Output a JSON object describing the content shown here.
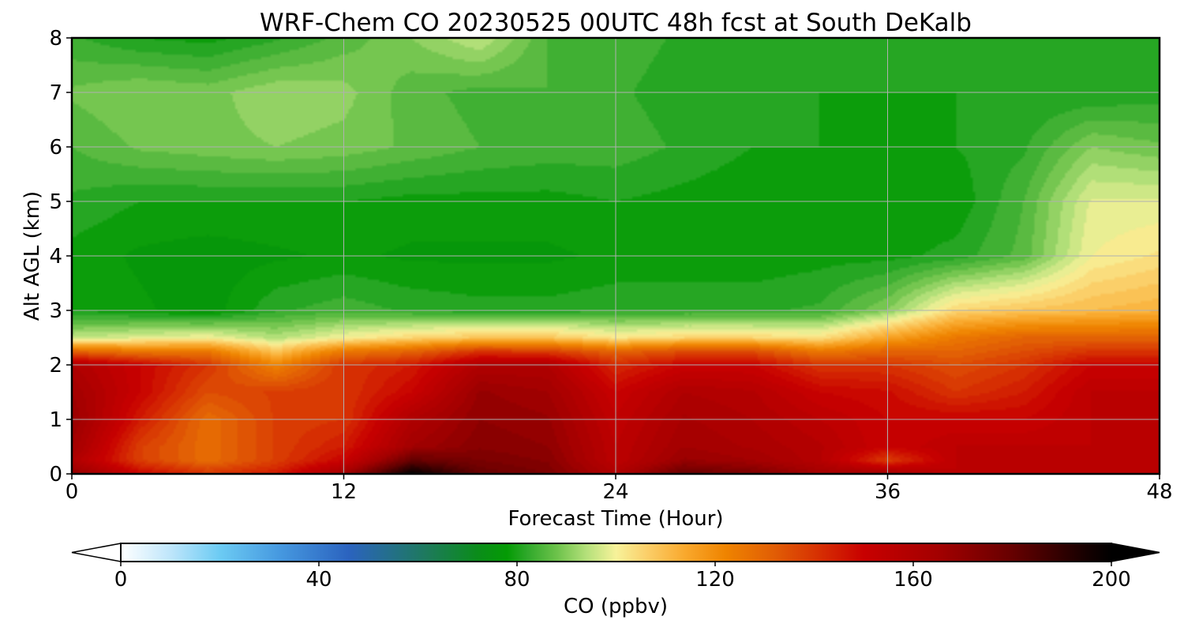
{
  "chart_data": {
    "type": "heatmap",
    "title": "WRF-Chem CO  20230525 00UTC 48h fcst at South DeKalb",
    "xlabel": "Forecast Time (Hour)",
    "ylabel": "Alt AGL (km)",
    "xlim": [
      0,
      48
    ],
    "ylim": [
      0,
      8
    ],
    "x_ticks": [
      0,
      12,
      24,
      36,
      48
    ],
    "y_ticks": [
      0,
      1,
      2,
      3,
      4,
      5,
      6,
      7,
      8
    ],
    "grid": true,
    "x": [
      0,
      3,
      6,
      9,
      12,
      15,
      18,
      21,
      24,
      27,
      30,
      33,
      36,
      39,
      42,
      45,
      48
    ],
    "y": [
      0,
      0.25,
      0.5,
      1,
      1.5,
      2,
      2.25,
      2.5,
      3,
      4,
      5,
      6,
      7,
      8
    ],
    "z": [
      [
        170,
        150,
        140,
        145,
        165,
        200,
        180,
        175,
        160,
        180,
        175,
        165,
        165,
        155,
        155,
        155,
        155
      ],
      [
        160,
        138,
        128,
        138,
        150,
        180,
        175,
        172,
        155,
        168,
        165,
        158,
        138,
        155,
        155,
        155,
        155
      ],
      [
        165,
        138,
        128,
        138,
        145,
        165,
        172,
        170,
        155,
        165,
        162,
        158,
        150,
        155,
        155,
        155,
        155
      ],
      [
        168,
        145,
        128,
        138,
        140,
        160,
        170,
        168,
        153,
        163,
        160,
        155,
        150,
        150,
        150,
        155,
        155
      ],
      [
        165,
        150,
        135,
        138,
        140,
        150,
        168,
        165,
        150,
        160,
        158,
        150,
        148,
        140,
        145,
        155,
        155
      ],
      [
        160,
        150,
        140,
        122,
        140,
        145,
        160,
        160,
        142,
        150,
        150,
        140,
        140,
        135,
        140,
        150,
        150
      ],
      [
        130,
        125,
        125,
        108,
        125,
        130,
        140,
        138,
        130,
        135,
        135,
        125,
        130,
        130,
        135,
        140,
        140
      ],
      [
        95,
        98,
        100,
        94,
        100,
        105,
        108,
        108,
        102,
        105,
        105,
        103,
        115,
        125,
        130,
        130,
        130
      ],
      [
        80,
        78,
        76,
        82,
        84,
        82,
        81,
        81,
        82,
        82,
        82,
        83,
        90,
        105,
        108,
        110,
        112
      ],
      [
        79,
        77,
        76,
        77,
        78,
        77,
        77,
        77,
        78,
        78,
        78,
        79,
        79,
        81,
        86,
        100,
        103
      ],
      [
        82,
        80,
        80,
        80,
        80,
        79,
        79,
        79,
        80,
        79,
        78,
        78,
        78,
        78,
        85,
        98,
        98
      ],
      [
        85,
        88,
        89,
        90,
        89,
        87,
        85,
        84,
        84,
        82,
        80,
        80,
        79,
        80,
        82,
        90,
        88
      ],
      [
        88,
        90,
        89,
        92,
        91,
        86,
        84,
        85,
        83,
        81,
        80,
        80,
        80,
        80,
        80,
        80,
        81
      ],
      [
        83,
        80,
        79,
        82,
        86,
        90,
        95,
        85,
        84,
        82,
        82,
        82,
        81,
        81,
        81,
        82,
        82
      ]
    ],
    "colorbar": {
      "label": "CO  (ppbv)",
      "min": 0,
      "max": 200,
      "ticks": [
        0,
        40,
        80,
        120,
        160,
        200
      ],
      "extend": "both",
      "stops": [
        {
          "v": 0,
          "c": "#ffffff"
        },
        {
          "v": 10,
          "c": "#bfe6fb"
        },
        {
          "v": 20,
          "c": "#6ccbf3"
        },
        {
          "v": 32,
          "c": "#4699e0"
        },
        {
          "v": 46,
          "c": "#2b63bf"
        },
        {
          "v": 62,
          "c": "#1d7a5a"
        },
        {
          "v": 72,
          "c": "#0a8c1a"
        },
        {
          "v": 78,
          "c": "#049b04"
        },
        {
          "v": 82,
          "c": "#2ea82a"
        },
        {
          "v": 88,
          "c": "#6cc24a"
        },
        {
          "v": 94,
          "c": "#b4e07a"
        },
        {
          "v": 100,
          "c": "#f7f29a"
        },
        {
          "v": 106,
          "c": "#fbd06b"
        },
        {
          "v": 114,
          "c": "#f9a82c"
        },
        {
          "v": 122,
          "c": "#ef8400"
        },
        {
          "v": 132,
          "c": "#e15d05"
        },
        {
          "v": 142,
          "c": "#d52a02"
        },
        {
          "v": 150,
          "c": "#c80000"
        },
        {
          "v": 165,
          "c": "#a30000"
        },
        {
          "v": 180,
          "c": "#660000"
        },
        {
          "v": 195,
          "c": "#150000"
        },
        {
          "v": 200,
          "c": "#000000"
        }
      ]
    }
  }
}
